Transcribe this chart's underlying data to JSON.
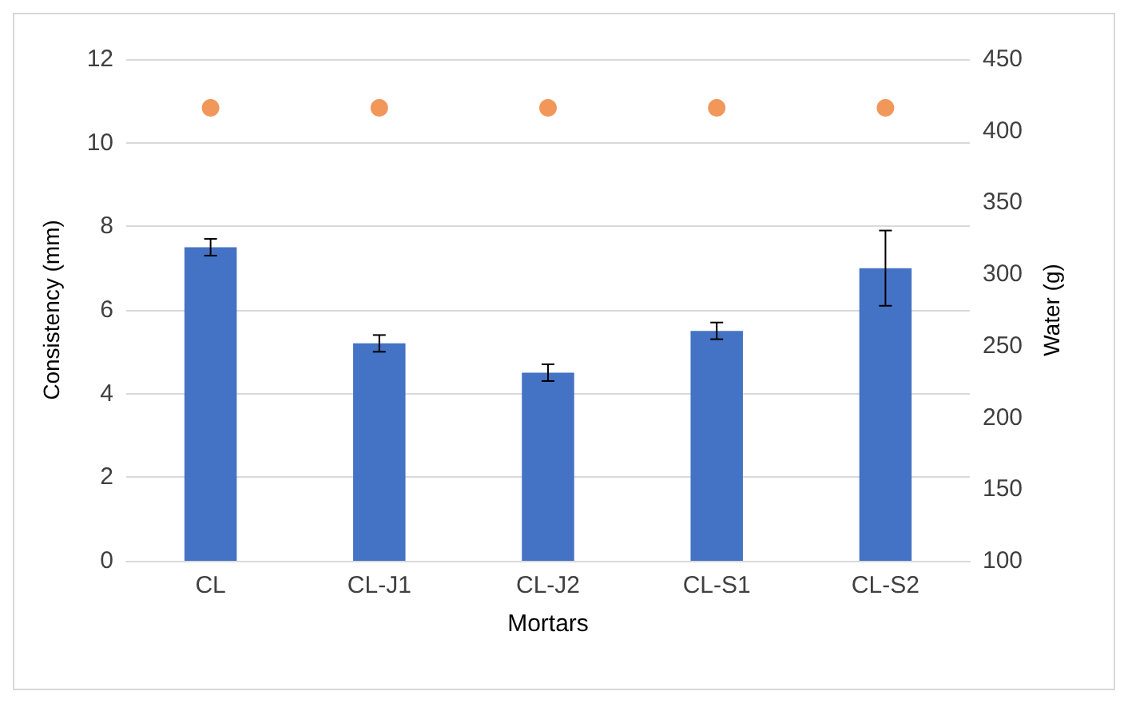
{
  "chart_data": {
    "type": "bar",
    "xlabel": "Mortars",
    "ylabel": "Consistency (mm)",
    "y2label": "Water (g)",
    "categories": [
      "CL",
      "CL-J1",
      "CL-J2",
      "CL-S1",
      "CL-S2"
    ],
    "series": [
      {
        "color": "#4472c4",
        "values": [
          7.5,
          5.2,
          4.5,
          5.5,
          7.0
        ],
        "errors": [
          0.2,
          0.2,
          0.2,
          0.2,
          0.9
        ]
      },
      {
        "type": "scatter",
        "color": "#ed7d31",
        "axis": "y2",
        "marker": "circle",
        "values": [
          416,
          416,
          416,
          416,
          416
        ]
      }
    ],
    "ylim": [
      0,
      12
    ],
    "yticks": [
      0,
      2,
      4,
      6,
      8,
      10,
      12
    ],
    "y2lim": [
      100,
      450
    ],
    "y2ticks": [
      100,
      150,
      200,
      250,
      300,
      350,
      400,
      450
    ],
    "grid": "y"
  }
}
